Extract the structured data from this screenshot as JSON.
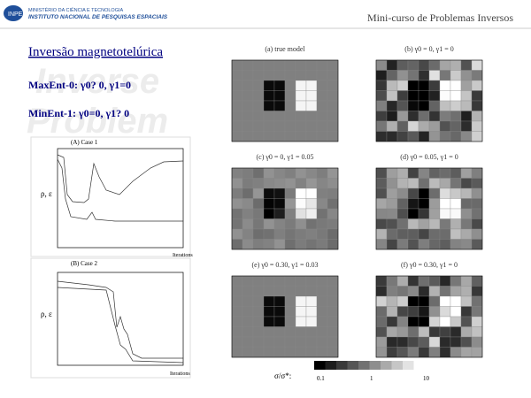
{
  "header": {
    "ministry": "MINISTÉRIO DA CIÊNCIA E TECNOLOGIA",
    "institute": "INSTITUTO NACIONAL DE PESQUISAS ESPACIAIS",
    "course": "Mini-curso de Problemas Inversos"
  },
  "title": "Inversão magnetotelúrica",
  "methods": [
    "MaxEnt-0: γ0? 0, γ1=0",
    "MinEnt-1: γ0=0, γ1? 0"
  ],
  "plots": [
    {
      "label": "(A) Case 1",
      "ylabel": "ρ, ε",
      "xlabel": "Iterations"
    },
    {
      "label": "(B) Case 2",
      "ylabel": "ρ, ε",
      "xlabel": "Iterations"
    }
  ],
  "panels": [
    "(a) true model",
    "(b) γ0 = 0, γ1 = 0",
    "(c) γ0 = 0, γ1 = 0.05",
    "(d) γ0 = 0.05, γ1 = 0",
    "(e) γ0 = 0.30, γ1 = 0.03",
    "(f) γ0 = 0.30, γ1 = 0"
  ],
  "colorbar": {
    "label": "σ/σ*:",
    "ticks": [
      "0.1",
      "1",
      "10"
    ]
  }
}
